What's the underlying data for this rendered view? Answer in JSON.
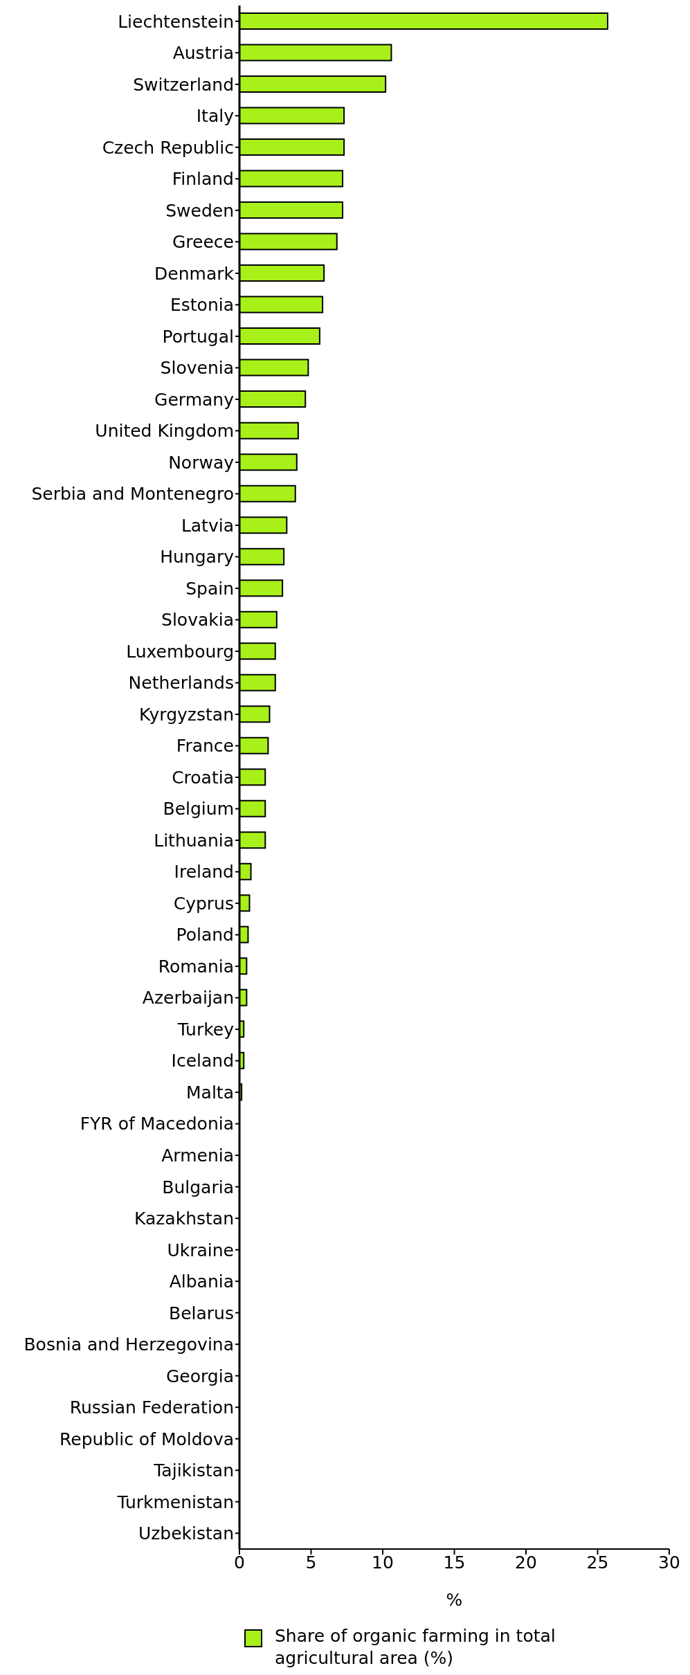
{
  "chart_data": {
    "type": "bar",
    "orientation": "horizontal",
    "xlabel": "%",
    "categories": [
      "Liechtenstein",
      "Austria",
      "Switzerland",
      "Italy",
      "Czech Republic",
      "Finland",
      "Sweden",
      "Greece",
      "Denmark",
      "Estonia",
      "Portugal",
      "Slovenia",
      "Germany",
      "United Kingdom",
      "Norway",
      "Serbia and Montenegro",
      "Latvia",
      "Hungary",
      "Spain",
      "Slovakia",
      "Luxembourg",
      "Netherlands",
      "Kyrgyzstan",
      "France",
      "Croatia",
      "Belgium",
      "Lithuania",
      "Ireland",
      "Cyprus",
      "Poland",
      "Romania",
      "Azerbaijan",
      "Turkey",
      "Iceland",
      "Malta",
      "FYR of Macedonia",
      "Armenia",
      "Bulgaria",
      "Kazakhstan",
      "Ukraine",
      "Albania",
      "Belarus",
      "Bosnia and Herzegovina",
      "Georgia",
      "Russian Federation",
      "Republic of Moldova",
      "Tajikistan",
      "Turkmenistan",
      "Uzbekistan"
    ],
    "series": [
      {
        "name": "Share of organic farming in total agricultural area (%)",
        "color": "#a8f01a",
        "values": [
          25.7,
          10.6,
          10.2,
          7.3,
          7.3,
          7.2,
          7.2,
          6.8,
          5.9,
          5.8,
          5.6,
          4.8,
          4.6,
          4.1,
          4.0,
          3.9,
          3.3,
          3.1,
          3.0,
          2.6,
          2.5,
          2.5,
          2.1,
          2.0,
          1.8,
          1.8,
          1.8,
          0.8,
          0.7,
          0.6,
          0.5,
          0.5,
          0.3,
          0.3,
          0.15,
          null,
          null,
          null,
          0,
          0,
          0,
          0,
          0,
          0,
          0,
          0,
          0,
          0,
          0
        ]
      }
    ],
    "xlim": [
      0,
      30
    ],
    "xticks": [
      0,
      5,
      10,
      15,
      20,
      25,
      30
    ],
    "grid": false,
    "legend": "bottom"
  }
}
